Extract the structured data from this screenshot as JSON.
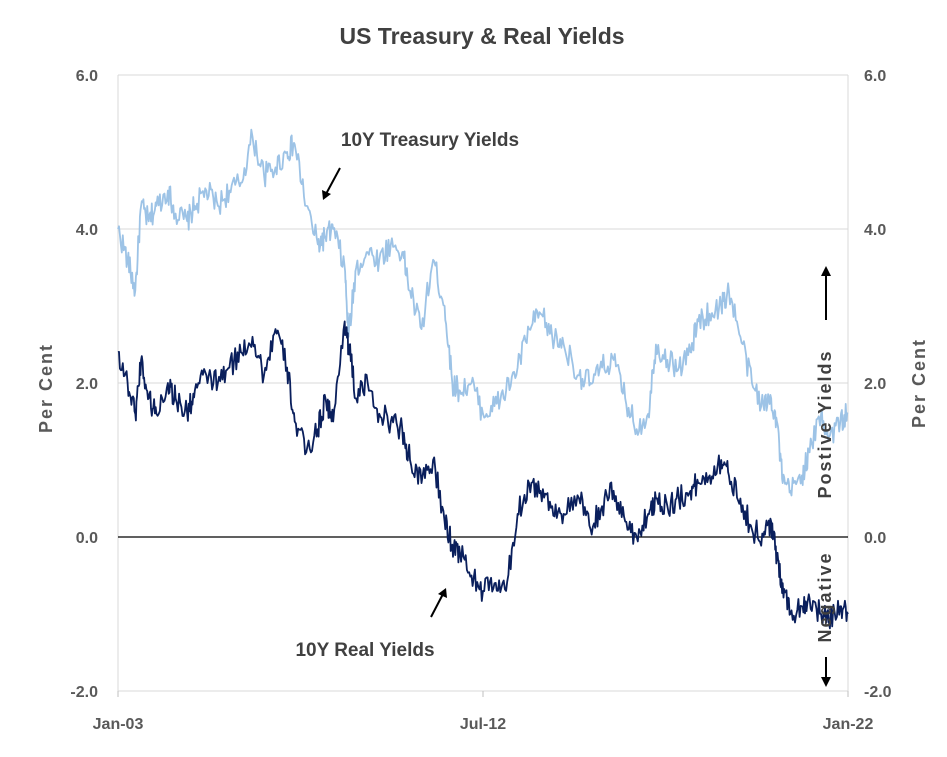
{
  "chart_data": {
    "type": "line",
    "title": "US Treasury & Real Yields",
    "ylabel_left": "Per  Cent",
    "ylabel_right": "Per  Cent",
    "ylim": [
      -2.0,
      6.0
    ],
    "yticks": [
      "-2.0",
      "0.0",
      "2.0",
      "4.0",
      "6.0"
    ],
    "ytick_values": [
      -2,
      0,
      2,
      4,
      6
    ],
    "xlim": [
      2003.0,
      2022.0
    ],
    "xticks": [
      "Jan-03",
      "Jul-12",
      "Jan-22"
    ],
    "xtick_values": [
      2003.0,
      2012.5,
      2022.0
    ],
    "grid": true,
    "zero_line": true,
    "series": [
      {
        "name": "10Y Treasury Yields",
        "color": "#9dc3e6",
        "x": [
          2003.0,
          2003.25,
          2003.45,
          2003.6,
          2003.8,
          2004.0,
          2004.3,
          2004.5,
          2004.8,
          2005.0,
          2005.3,
          2005.6,
          2005.9,
          2006.2,
          2006.5,
          2006.8,
          2007.1,
          2007.4,
          2007.6,
          2007.9,
          2008.2,
          2008.4,
          2008.6,
          2008.9,
          2009.0,
          2009.2,
          2009.5,
          2009.8,
          2010.1,
          2010.4,
          2010.6,
          2010.9,
          2011.2,
          2011.5,
          2011.7,
          2011.9,
          2012.2,
          2012.5,
          2012.8,
          2013.1,
          2013.4,
          2013.7,
          2014.0,
          2014.3,
          2014.6,
          2015.0,
          2015.3,
          2015.6,
          2015.9,
          2016.2,
          2016.5,
          2016.8,
          2017.0,
          2017.3,
          2017.6,
          2017.9,
          2018.1,
          2018.4,
          2018.7,
          2018.9,
          2019.2,
          2019.5,
          2019.8,
          2020.0,
          2020.15,
          2020.3,
          2020.5,
          2020.8,
          2021.0,
          2021.3,
          2021.5,
          2021.8,
          2022.0
        ],
        "values": [
          4.0,
          3.6,
          3.2,
          4.3,
          4.1,
          4.3,
          4.5,
          4.2,
          4.1,
          4.3,
          4.5,
          4.3,
          4.5,
          4.6,
          5.2,
          4.7,
          4.8,
          5.0,
          5.1,
          4.3,
          3.8,
          3.9,
          4.0,
          3.5,
          2.6,
          3.5,
          3.7,
          3.6,
          3.8,
          3.7,
          3.2,
          2.7,
          3.6,
          3.0,
          2.0,
          1.9,
          2.0,
          1.6,
          1.7,
          1.9,
          2.2,
          2.7,
          2.9,
          2.6,
          2.5,
          2.1,
          2.0,
          2.2,
          2.3,
          1.8,
          1.4,
          1.6,
          2.5,
          2.3,
          2.2,
          2.4,
          2.8,
          2.9,
          3.0,
          3.2,
          2.6,
          2.0,
          1.7,
          1.8,
          1.5,
          0.7,
          0.6,
          0.8,
          1.1,
          1.6,
          1.3,
          1.5,
          1.6
        ]
      },
      {
        "name": "10Y Real Yields",
        "color": "#0a1f5c",
        "x": [
          2003.0,
          2003.25,
          2003.45,
          2003.6,
          2003.8,
          2004.0,
          2004.3,
          2004.5,
          2004.8,
          2005.0,
          2005.3,
          2005.6,
          2005.9,
          2006.2,
          2006.5,
          2006.8,
          2007.1,
          2007.4,
          2007.6,
          2007.9,
          2008.2,
          2008.4,
          2008.6,
          2008.9,
          2009.0,
          2009.2,
          2009.5,
          2009.8,
          2010.1,
          2010.4,
          2010.6,
          2010.9,
          2011.2,
          2011.5,
          2011.7,
          2011.9,
          2012.2,
          2012.5,
          2012.8,
          2013.1,
          2013.4,
          2013.7,
          2014.0,
          2014.3,
          2014.6,
          2015.0,
          2015.3,
          2015.6,
          2015.9,
          2016.2,
          2016.5,
          2016.8,
          2017.0,
          2017.3,
          2017.6,
          2017.9,
          2018.1,
          2018.4,
          2018.7,
          2018.9,
          2019.2,
          2019.5,
          2019.8,
          2020.0,
          2020.15,
          2020.3,
          2020.5,
          2020.8,
          2021.0,
          2021.3,
          2021.5,
          2021.8,
          2022.0
        ],
        "values": [
          2.4,
          2.0,
          1.6,
          2.3,
          1.8,
          1.6,
          2.0,
          1.8,
          1.6,
          1.9,
          2.1,
          2.0,
          2.2,
          2.4,
          2.6,
          2.1,
          2.7,
          2.2,
          1.5,
          1.1,
          1.4,
          1.8,
          1.5,
          2.8,
          2.5,
          1.8,
          2.0,
          1.6,
          1.5,
          1.4,
          1.0,
          0.7,
          1.0,
          0.2,
          -0.1,
          -0.2,
          -0.5,
          -0.7,
          -0.6,
          -0.7,
          0.3,
          0.7,
          0.6,
          0.4,
          0.3,
          0.5,
          0.1,
          0.4,
          0.6,
          0.2,
          0.0,
          0.3,
          0.5,
          0.4,
          0.5,
          0.6,
          0.7,
          0.8,
          1.0,
          0.8,
          0.5,
          0.1,
          0.0,
          0.2,
          -0.3,
          -0.6,
          -1.0,
          -0.9,
          -0.8,
          -1.0,
          -1.1,
          -0.9,
          -1.0
        ]
      }
    ],
    "annotations": {
      "treasury_label": "10Y Treasury Yields",
      "real_label": "10Y Real Yields",
      "positive_label": "Postive  Yields",
      "negative_label": "Negative"
    }
  }
}
